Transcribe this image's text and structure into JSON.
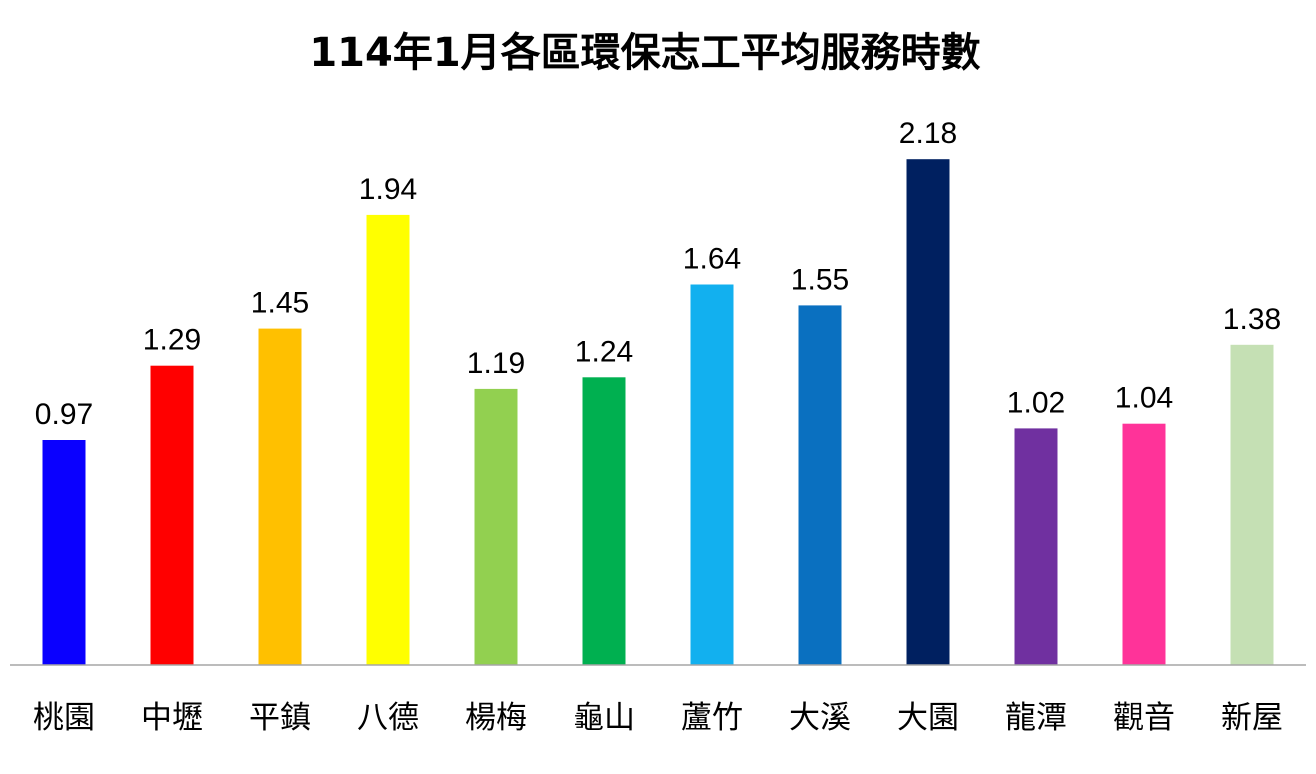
{
  "chart_data": {
    "type": "bar",
    "title": "114年1月各區環保志工平均服務時數",
    "xlabel": "",
    "ylabel": "",
    "ylim": [
      0,
      2.4
    ],
    "grid": false,
    "legend": "none",
    "categories": [
      "桃園",
      "中壢",
      "平鎮",
      "八德",
      "楊梅",
      "龜山",
      "蘆竹",
      "大溪",
      "大園",
      "龍潭",
      "觀音",
      "新屋"
    ],
    "values": [
      0.97,
      1.29,
      1.45,
      1.94,
      1.19,
      1.24,
      1.64,
      1.55,
      2.18,
      1.02,
      1.04,
      1.38
    ],
    "value_labels": [
      "0.97",
      "1.29",
      "1.45",
      "1.94",
      "1.19",
      "1.24",
      "1.64",
      "1.55",
      "2.18",
      "1.02",
      "1.04",
      "1.38"
    ],
    "colors": [
      "#0a00ff",
      "#ff0000",
      "#ffc000",
      "#ffff00",
      "#92d050",
      "#00b050",
      "#12b0ef",
      "#0a70c0",
      "#002060",
      "#7030a0",
      "#ff3399",
      "#c5e0b4"
    ],
    "axis_color": "#a6a6a6"
  }
}
